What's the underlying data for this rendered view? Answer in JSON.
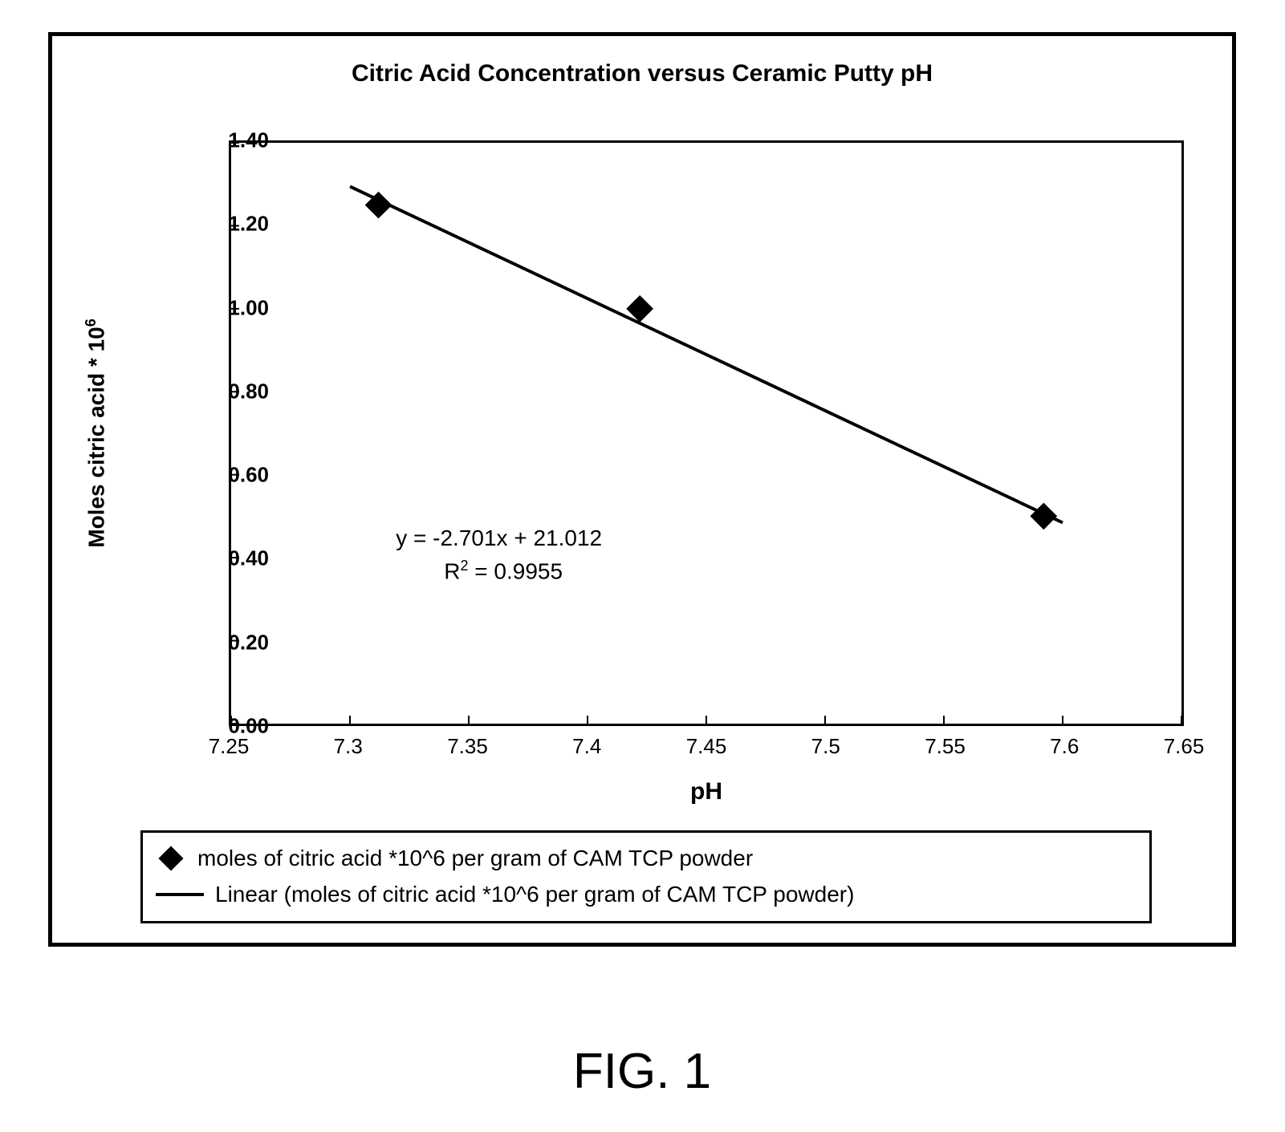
{
  "chart": {
    "type": "scatter+line",
    "title": "Citric Acid Concentration versus Ceramic Putty pH",
    "title_fontsize": 30,
    "background_color": "#ffffff",
    "border_color": "#000000",
    "x_axis": {
      "label": "pH",
      "label_fontsize": 30,
      "min": 7.25,
      "max": 7.65,
      "ticks": [
        7.25,
        7.3,
        7.35,
        7.4,
        7.45,
        7.5,
        7.55,
        7.6,
        7.65
      ],
      "tick_labels": [
        "7.25",
        "7.3",
        "7.35",
        "7.4",
        "7.45",
        "7.5",
        "7.55",
        "7.6",
        "7.65"
      ],
      "tick_fontsize": 26
    },
    "y_axis": {
      "label_html": "Moles citric acid * 10<sup>6</sup>",
      "label_plain": "Moles citric acid * 10^6",
      "label_fontsize": 28,
      "min": 0.0,
      "max": 1.4,
      "ticks": [
        0.0,
        0.2,
        0.4,
        0.6,
        0.8,
        1.0,
        1.2,
        1.4
      ],
      "tick_labels": [
        "0.00",
        "0.20",
        "0.40",
        "0.60",
        "0.80",
        "1.00",
        "1.20",
        "1.40"
      ],
      "tick_fontsize": 26
    },
    "data_points": [
      {
        "x": 7.312,
        "y": 1.25
      },
      {
        "x": 7.422,
        "y": 1.0
      },
      {
        "x": 7.592,
        "y": 0.5
      }
    ],
    "marker": {
      "shape": "diamond",
      "size": 24,
      "color": "#000000"
    },
    "trendline": {
      "slope": -2.701,
      "intercept": 21.012,
      "r_squared": 0.9955,
      "color": "#000000",
      "width": 4,
      "x_start": 7.3,
      "x_end": 7.6
    },
    "equation_text": {
      "line1": "y = -2.701x + 21.012",
      "line2_html": "R<sup>2</sup> = 0.9955",
      "line2_plain": "R^2 = 0.9955",
      "fontsize": 28,
      "pos_data": {
        "x": 7.32,
        "y": 0.48
      }
    },
    "legend": {
      "border_color": "#000000",
      "items": [
        {
          "marker": "diamond",
          "label": "moles of citric acid *10^6 per gram of CAM TCP powder"
        },
        {
          "marker": "line",
          "label": "Linear (moles of citric acid *10^6 per gram of CAM TCP powder)"
        }
      ]
    }
  },
  "figure_caption": "FIG. 1"
}
